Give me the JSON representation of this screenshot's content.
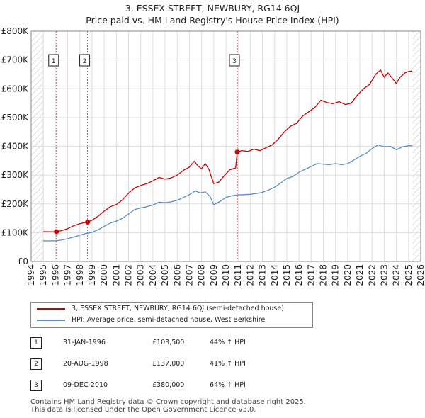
{
  "title": "3, ESSEX STREET, NEWBURY, RG14 6QJ",
  "subtitle": "Price paid vs. HM Land Registry's House Price Index (HPI)",
  "colors": {
    "property": "#cc0000",
    "hpi": "#5b8ec8",
    "marker_line": "#dd4444",
    "grid": "#dddddd",
    "hatch": "#c8c8c8",
    "plot_bg": "#ffffff"
  },
  "chart_data": {
    "type": "line",
    "xlim": [
      1994,
      2026
    ],
    "ylim": [
      0,
      800000
    ],
    "y_ticks": [
      0,
      100000,
      200000,
      300000,
      400000,
      500000,
      600000,
      700000,
      800000
    ],
    "y_tick_labels": [
      "£0",
      "£100K",
      "£200K",
      "£300K",
      "£400K",
      "£500K",
      "£600K",
      "£700K",
      "£800K"
    ],
    "x_ticks": [
      1994,
      1995,
      1996,
      1997,
      1998,
      1999,
      2000,
      2001,
      2002,
      2003,
      2004,
      2005,
      2006,
      2007,
      2008,
      2009,
      2010,
      2011,
      2012,
      2013,
      2014,
      2015,
      2016,
      2017,
      2018,
      2019,
      2020,
      2021,
      2022,
      2023,
      2024,
      2025,
      2026
    ],
    "x_tick_labels": [
      "1994",
      "1995",
      "1996",
      "1997",
      "1998",
      "1999",
      "2000",
      "2001",
      "2002",
      "2003",
      "2004",
      "2005",
      "2006",
      "2007",
      "2008",
      "2009",
      "2010",
      "2011",
      "2012",
      "2013",
      "2014",
      "2015",
      "2016",
      "2017",
      "2018",
      "2019",
      "2020",
      "2021",
      "2022",
      "2023",
      "2024",
      "2025",
      "2026"
    ],
    "hatched_ranges": [
      [
        1994,
        1995.0
      ],
      [
        2025.3,
        2026
      ]
    ],
    "series": [
      {
        "name": "3, ESSEX STREET, NEWBURY, RG14 6QJ (semi-detached house)",
        "color": "#cc0000",
        "points": [
          [
            1995.0,
            103500
          ],
          [
            1995.5,
            103000
          ],
          [
            1996.08,
            103500
          ],
          [
            1996.5,
            107000
          ],
          [
            1997.0,
            114000
          ],
          [
            1997.5,
            124000
          ],
          [
            1998.0,
            131000
          ],
          [
            1998.63,
            137000
          ],
          [
            1999.0,
            143000
          ],
          [
            1999.5,
            157000
          ],
          [
            2000.0,
            175000
          ],
          [
            2000.5,
            190000
          ],
          [
            2001.0,
            198000
          ],
          [
            2001.5,
            214000
          ],
          [
            2002.0,
            237000
          ],
          [
            2002.5,
            255000
          ],
          [
            2003.0,
            264000
          ],
          [
            2003.5,
            270000
          ],
          [
            2004.0,
            280000
          ],
          [
            2004.5,
            292000
          ],
          [
            2005.0,
            286000
          ],
          [
            2005.5,
            290000
          ],
          [
            2006.0,
            300000
          ],
          [
            2006.5,
            316000
          ],
          [
            2007.0,
            328000
          ],
          [
            2007.4,
            348000
          ],
          [
            2007.7,
            332000
          ],
          [
            2008.0,
            322000
          ],
          [
            2008.3,
            340000
          ],
          [
            2008.6,
            320000
          ],
          [
            2009.0,
            270000
          ],
          [
            2009.4,
            275000
          ],
          [
            2009.8,
            295000
          ],
          [
            2010.3,
            318000
          ],
          [
            2010.8,
            325000
          ],
          [
            2010.93,
            380000
          ],
          [
            2011.3,
            385000
          ],
          [
            2011.8,
            382000
          ],
          [
            2012.3,
            390000
          ],
          [
            2012.8,
            385000
          ],
          [
            2013.3,
            395000
          ],
          [
            2013.8,
            405000
          ],
          [
            2014.3,
            425000
          ],
          [
            2014.8,
            450000
          ],
          [
            2015.3,
            470000
          ],
          [
            2015.8,
            480000
          ],
          [
            2016.3,
            505000
          ],
          [
            2016.8,
            520000
          ],
          [
            2017.3,
            535000
          ],
          [
            2017.8,
            560000
          ],
          [
            2018.3,
            552000
          ],
          [
            2018.8,
            548000
          ],
          [
            2019.3,
            555000
          ],
          [
            2019.8,
            545000
          ],
          [
            2020.3,
            550000
          ],
          [
            2020.8,
            578000
          ],
          [
            2021.3,
            600000
          ],
          [
            2021.8,
            615000
          ],
          [
            2022.3,
            650000
          ],
          [
            2022.7,
            665000
          ],
          [
            2023.0,
            640000
          ],
          [
            2023.3,
            655000
          ],
          [
            2023.6,
            640000
          ],
          [
            2024.0,
            618000
          ],
          [
            2024.3,
            640000
          ],
          [
            2024.7,
            655000
          ],
          [
            2025.0,
            660000
          ],
          [
            2025.3,
            662000
          ]
        ]
      },
      {
        "name": "HPI: Average price, semi-detached house, West Berkshire",
        "color": "#5b8ec8",
        "points": [
          [
            1995.0,
            72000
          ],
          [
            1995.5,
            71500
          ],
          [
            1996.0,
            72000
          ],
          [
            1996.5,
            74000
          ],
          [
            1997.0,
            79000
          ],
          [
            1997.5,
            85000
          ],
          [
            1998.0,
            91000
          ],
          [
            1998.5,
            97000
          ],
          [
            1999.0,
            101000
          ],
          [
            1999.5,
            110000
          ],
          [
            2000.0,
            122000
          ],
          [
            2000.5,
            133000
          ],
          [
            2001.0,
            140000
          ],
          [
            2001.5,
            150000
          ],
          [
            2002.0,
            165000
          ],
          [
            2002.5,
            180000
          ],
          [
            2003.0,
            186000
          ],
          [
            2003.5,
            190000
          ],
          [
            2004.0,
            196000
          ],
          [
            2004.5,
            206000
          ],
          [
            2005.0,
            204000
          ],
          [
            2005.5,
            207000
          ],
          [
            2006.0,
            213000
          ],
          [
            2006.5,
            222000
          ],
          [
            2007.0,
            232000
          ],
          [
            2007.5,
            245000
          ],
          [
            2007.9,
            238000
          ],
          [
            2008.3,
            242000
          ],
          [
            2008.7,
            225000
          ],
          [
            2009.0,
            197000
          ],
          [
            2009.5,
            208000
          ],
          [
            2010.0,
            222000
          ],
          [
            2010.5,
            228000
          ],
          [
            2010.93,
            231000
          ],
          [
            2011.5,
            232000
          ],
          [
            2012.0,
            233000
          ],
          [
            2012.5,
            236000
          ],
          [
            2013.0,
            240000
          ],
          [
            2013.5,
            248000
          ],
          [
            2014.0,
            258000
          ],
          [
            2014.5,
            272000
          ],
          [
            2015.0,
            288000
          ],
          [
            2015.5,
            295000
          ],
          [
            2016.0,
            310000
          ],
          [
            2016.5,
            320000
          ],
          [
            2017.0,
            330000
          ],
          [
            2017.5,
            340000
          ],
          [
            2018.0,
            338000
          ],
          [
            2018.5,
            336000
          ],
          [
            2019.0,
            340000
          ],
          [
            2019.5,
            336000
          ],
          [
            2020.0,
            340000
          ],
          [
            2020.5,
            352000
          ],
          [
            2021.0,
            365000
          ],
          [
            2021.5,
            375000
          ],
          [
            2022.0,
            392000
          ],
          [
            2022.5,
            405000
          ],
          [
            2023.0,
            398000
          ],
          [
            2023.5,
            400000
          ],
          [
            2024.0,
            388000
          ],
          [
            2024.5,
            398000
          ],
          [
            2025.0,
            402000
          ],
          [
            2025.3,
            402000
          ]
        ]
      }
    ],
    "transactions": [
      {
        "label": "1",
        "x": 1996.08,
        "y": 103500
      },
      {
        "label": "2",
        "x": 1998.63,
        "y": 137000
      },
      {
        "label": "3",
        "x": 2010.93,
        "y": 380000
      }
    ]
  },
  "legend": {
    "property": "3, ESSEX STREET, NEWBURY, RG14 6QJ (semi-detached house)",
    "hpi": "HPI: Average price, semi-detached house, West Berkshire"
  },
  "table": [
    {
      "num": "1",
      "date": "31-JAN-1996",
      "price": "£103,500",
      "hpi": "44% ↑ HPI"
    },
    {
      "num": "2",
      "date": "20-AUG-1998",
      "price": "£137,000",
      "hpi": "41% ↑ HPI"
    },
    {
      "num": "3",
      "date": "09-DEC-2010",
      "price": "£380,000",
      "hpi": "64% ↑ HPI"
    }
  ],
  "footer": {
    "line1": "Contains HM Land Registry data © Crown copyright and database right 2025.",
    "line2": "This data is licensed under the Open Government Licence v3.0."
  }
}
